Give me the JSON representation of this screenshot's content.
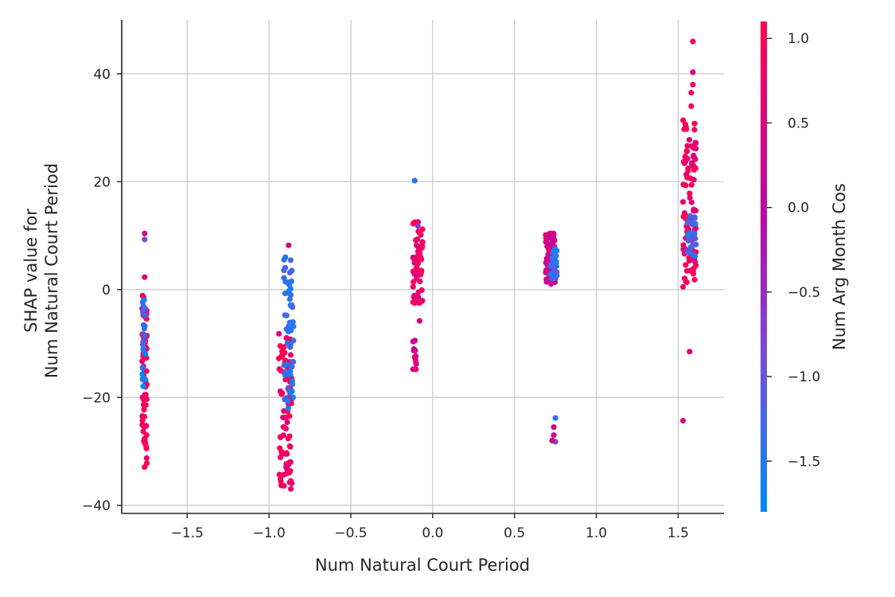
{
  "chart_data": {
    "type": "scatter",
    "xlabel": "Num  Natural Court Period",
    "ylabel_lines": [
      "SHAP value for",
      "Num  Natural Court Period"
    ],
    "xlim": [
      -1.9,
      1.78
    ],
    "ylim": [
      -41.5,
      50
    ],
    "xticks": [
      -1.5,
      -1.0,
      -0.5,
      0.0,
      0.5,
      1.0,
      1.5
    ],
    "xtick_labels": [
      "−1.5",
      "−1.0",
      "−0.5",
      "0.0",
      "0.5",
      "1.0",
      "1.5"
    ],
    "yticks": [
      -40,
      -20,
      0,
      20,
      40
    ],
    "ytick_labels": [
      "−40",
      "−20",
      "0",
      "20",
      "40"
    ],
    "grid": true,
    "colorbar": {
      "label": "Num  Arg Month Cos",
      "range": [
        -1.8,
        1.1
      ],
      "ticks": [
        -1.5,
        -1.0,
        -0.5,
        0.0,
        0.5,
        1.0
      ],
      "tick_labels": [
        "−1.5",
        "−1.0",
        "−0.5",
        "0.0",
        "0.5",
        "1.0"
      ],
      "colors": [
        "#008afb",
        "#7b4ad4",
        "#b80aa6",
        "#ff0052"
      ]
    },
    "clusters": [
      {
        "x": -1.76,
        "x_spread": 0.015,
        "y_min": -33,
        "y_max": -1,
        "n": 70,
        "dominant_color": 0.95
      },
      {
        "x": -1.765,
        "x_spread": 0.01,
        "y_min": -18,
        "y_max": -1,
        "n": 25,
        "dominant_color": -1.5
      },
      {
        "x": -0.9,
        "x_spread": 0.04,
        "y_min": -37,
        "y_max": -8,
        "n": 90,
        "dominant_color": 0.95
      },
      {
        "x": -0.88,
        "x_spread": 0.03,
        "y_min": -22,
        "y_max": 6,
        "n": 55,
        "dominant_color": -1.4
      },
      {
        "x": -0.09,
        "x_spread": 0.03,
        "y_min": -3,
        "y_max": 13,
        "n": 60,
        "dominant_color": 0.9
      },
      {
        "x": -0.11,
        "x_spread": 0.01,
        "y_min": -15,
        "y_max": -9,
        "n": 14,
        "dominant_color": 0.5
      },
      {
        "x": 0.72,
        "x_spread": 0.03,
        "y_min": 1,
        "y_max": 10.5,
        "n": 90,
        "dominant_color": 0.5
      },
      {
        "x": 0.74,
        "x_spread": 0.02,
        "y_min": 2,
        "y_max": 8,
        "n": 30,
        "dominant_color": -1.4
      },
      {
        "x": 1.57,
        "x_spread": 0.04,
        "y_min": 1,
        "y_max": 32,
        "n": 90,
        "dominant_color": 0.9
      },
      {
        "x": 1.58,
        "x_spread": 0.03,
        "y_min": 5,
        "y_max": 14,
        "n": 30,
        "dominant_color": -1.3
      }
    ],
    "points": [
      {
        "x": -1.76,
        "y": 10.4,
        "c": 0.5
      },
      {
        "x": -1.76,
        "y": 9.3,
        "c": -0.8
      },
      {
        "x": -1.76,
        "y": 2.3,
        "c": 0.6
      },
      {
        "x": -0.88,
        "y": 8.2,
        "c": 0.4
      },
      {
        "x": -0.9,
        "y": 6.0,
        "c": -1.5
      },
      {
        "x": -0.11,
        "y": 20.2,
        "c": -1.5
      },
      {
        "x": -0.09,
        "y": 11.8,
        "c": -0.6
      },
      {
        "x": -0.08,
        "y": -5.8,
        "c": 0.6
      },
      {
        "x": 0.75,
        "y": -23.8,
        "c": -1.5
      },
      {
        "x": 0.74,
        "y": -25.5,
        "c": 0.5
      },
      {
        "x": 0.74,
        "y": -27.0,
        "c": 0.6
      },
      {
        "x": 0.75,
        "y": -28.2,
        "c": -0.7
      },
      {
        "x": 0.73,
        "y": -28.0,
        "c": 0.4
      },
      {
        "x": 1.59,
        "y": 46.0,
        "c": 1.0
      },
      {
        "x": 1.59,
        "y": 40.3,
        "c": 0.6
      },
      {
        "x": 1.59,
        "y": 38.0,
        "c": 1.0
      },
      {
        "x": 1.58,
        "y": 36.5,
        "c": 0.9
      },
      {
        "x": 1.58,
        "y": 34.0,
        "c": 1.0
      },
      {
        "x": 1.57,
        "y": -11.5,
        "c": 0.7
      },
      {
        "x": 1.53,
        "y": -24.3,
        "c": 0.6
      },
      {
        "x": 1.53,
        "y": 0.5,
        "c": 0.9
      }
    ]
  }
}
